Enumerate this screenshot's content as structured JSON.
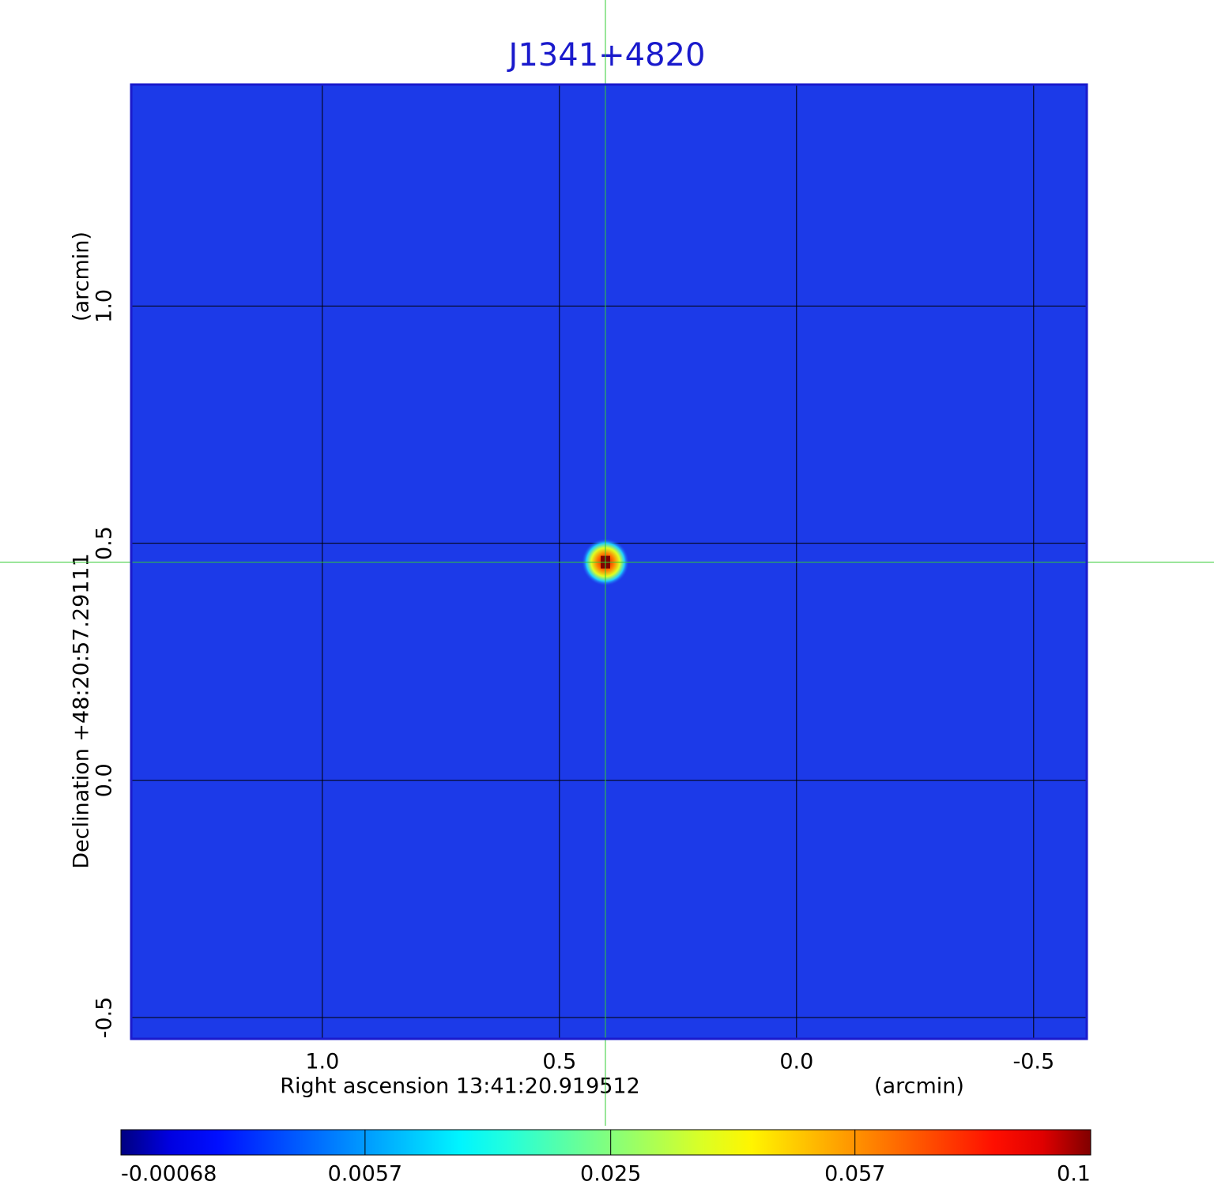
{
  "chart_data": {
    "type": "image",
    "title": "J1341+4820",
    "xlabel": "Right ascension  13:41:20.919512",
    "xunit": "(arcmin)",
    "ylabel": "Declination  +48:20:57.29111",
    "yunit": "(arcmin)",
    "xlim": [
      1.403,
      -0.612
    ],
    "ylim": [
      -0.545,
      1.467
    ],
    "xticks": [
      {
        "value": 1,
        "label": "1.0"
      },
      0.5,
      {
        "value": 0,
        "label": "0.0"
      },
      -0.5
    ],
    "yticks": [
      -0.5,
      {
        "value": 0,
        "label": "0.0"
      },
      0.5,
      {
        "value": 1,
        "label": "1.0"
      }
    ],
    "grid": true,
    "source": {
      "x": 0.403,
      "y": 0.46,
      "value": 0.1
    },
    "colorbar": {
      "scale": "sqrt",
      "clim": [
        -0.00068,
        0.1
      ],
      "ticks": [
        -0.00068,
        0.0057,
        0.025,
        0.057,
        0.1
      ]
    }
  }
}
